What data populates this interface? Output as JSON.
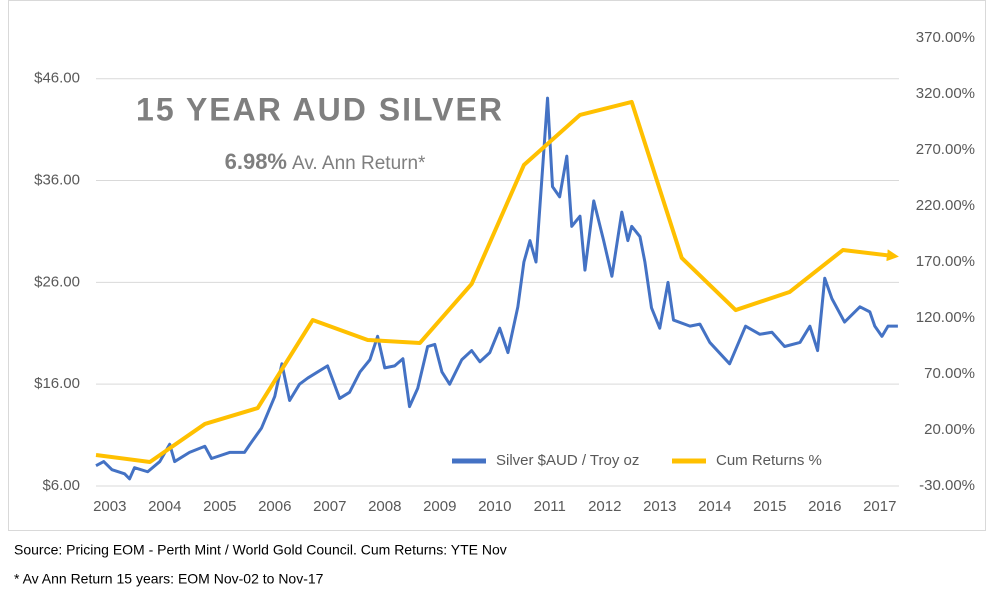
{
  "chart_data": {
    "type": "line",
    "title": "15 YEAR AUD SILVER",
    "annotations": [
      "6.98%",
      "Av. Ann Return*"
    ],
    "footnotes": [
      "Source: Pricing EOM - Perth Mint / World Gold Council. Cum Returns: YTE Nov",
      "* Av Ann Return 15 years: EOM Nov-02 to Nov-17"
    ],
    "xlim": [
      2002.75,
      2017.35
    ],
    "xticks": [
      2003,
      2004,
      2005,
      2006,
      2007,
      2008,
      2009,
      2010,
      2011,
      2012,
      2013,
      2014,
      2015,
      2016,
      2017
    ],
    "ylim": [
      6,
      50
    ],
    "yticks": [
      {
        "value": 6,
        "label": "$6.00"
      },
      {
        "value": 16,
        "label": "$16.00"
      },
      {
        "value": 26,
        "label": "$26.00"
      },
      {
        "value": 36,
        "label": "$36.00"
      },
      {
        "value": 46,
        "label": "$46.00"
      }
    ],
    "y2lim": [
      -30,
      370
    ],
    "y2ticks": [
      {
        "value": -30,
        "label": "-30.00%"
      },
      {
        "value": 20,
        "label": "20.00%"
      },
      {
        "value": 70,
        "label": "70.00%"
      },
      {
        "value": 120,
        "label": "120.00%"
      },
      {
        "value": 170,
        "label": "170.00%"
      },
      {
        "value": 220,
        "label": "220.00%"
      },
      {
        "value": 270,
        "label": "270.00%"
      },
      {
        "value": 320,
        "label": "320.00%"
      },
      {
        "value": 370,
        "label": "370.00%"
      }
    ],
    "grid": true,
    "series": [
      {
        "name": "Silver $AUD / Troy oz",
        "color": "#4472c4",
        "x": [
          2002.75,
          2002.89,
          2003.04,
          2003.27,
          2003.36,
          2003.45,
          2003.69,
          2003.91,
          2004.09,
          2004.18,
          2004.45,
          2004.73,
          2004.85,
          2005.18,
          2005.45,
          2005.55,
          2005.76,
          2006.0,
          2006.13,
          2006.27,
          2006.45,
          2006.6,
          2006.78,
          2006.96,
          2007.18,
          2007.36,
          2007.55,
          2007.73,
          2007.87,
          2008.0,
          2008.18,
          2008.33,
          2008.45,
          2008.6,
          2008.78,
          2008.91,
          2009.04,
          2009.18,
          2009.4,
          2009.58,
          2009.73,
          2009.91,
          2010.09,
          2010.24,
          2010.42,
          2010.53,
          2010.64,
          2010.75,
          2010.96,
          2011.05,
          2011.18,
          2011.31,
          2011.4,
          2011.55,
          2011.64,
          2011.8,
          2011.98,
          2012.13,
          2012.31,
          2012.42,
          2012.49,
          2012.64,
          2012.73,
          2012.85,
          2013.0,
          2013.15,
          2013.25,
          2013.55,
          2013.73,
          2013.91,
          2014.27,
          2014.56,
          2014.82,
          2015.04,
          2015.27,
          2015.55,
          2015.73,
          2015.87,
          2016.0,
          2016.13,
          2016.36,
          2016.64,
          2016.82,
          2016.91,
          2017.04,
          2017.15,
          2017.33
        ],
        "values": [
          8.0,
          8.4,
          7.6,
          7.2,
          6.7,
          7.8,
          7.4,
          8.4,
          10.1,
          8.4,
          9.3,
          9.9,
          8.7,
          9.3,
          9.3,
          10.1,
          11.7,
          14.8,
          18.0,
          14.4,
          16.0,
          16.6,
          17.2,
          17.8,
          14.6,
          15.2,
          17.2,
          18.4,
          20.7,
          17.6,
          17.8,
          18.5,
          13.8,
          15.6,
          19.7,
          19.9,
          17.2,
          16.0,
          18.4,
          19.3,
          18.2,
          19.1,
          21.5,
          19.1,
          23.6,
          28.0,
          30.1,
          28.0,
          44.1,
          35.4,
          34.4,
          38.4,
          31.5,
          32.5,
          27.2,
          34.0,
          30.1,
          26.6,
          32.9,
          30.1,
          31.5,
          30.5,
          28.0,
          23.5,
          21.5,
          26.0,
          22.3,
          21.7,
          21.9,
          20.1,
          18.0,
          21.7,
          20.9,
          21.1,
          19.7,
          20.1,
          21.7,
          19.3,
          26.4,
          24.4,
          22.1,
          23.6,
          23.1,
          21.7,
          20.7,
          21.7,
          21.7
        ]
      },
      {
        "name": "Cum Returns %",
        "color": "#ffc000",
        "axis": "y2",
        "x": [
          2002.75,
          2003.73,
          2004.73,
          2005.69,
          2006.69,
          2007.69,
          2008.64,
          2009.58,
          2010.53,
          2011.55,
          2012.49,
          2013.4,
          2014.38,
          2015.36,
          2016.33,
          2017.24
        ],
        "values": [
          -2.3,
          -8.6,
          25.4,
          39.6,
          118.2,
          100.4,
          97.7,
          150.4,
          256.6,
          301.3,
          312.9,
          173.6,
          127.1,
          143.2,
          180.7,
          175.4
        ]
      }
    ]
  }
}
